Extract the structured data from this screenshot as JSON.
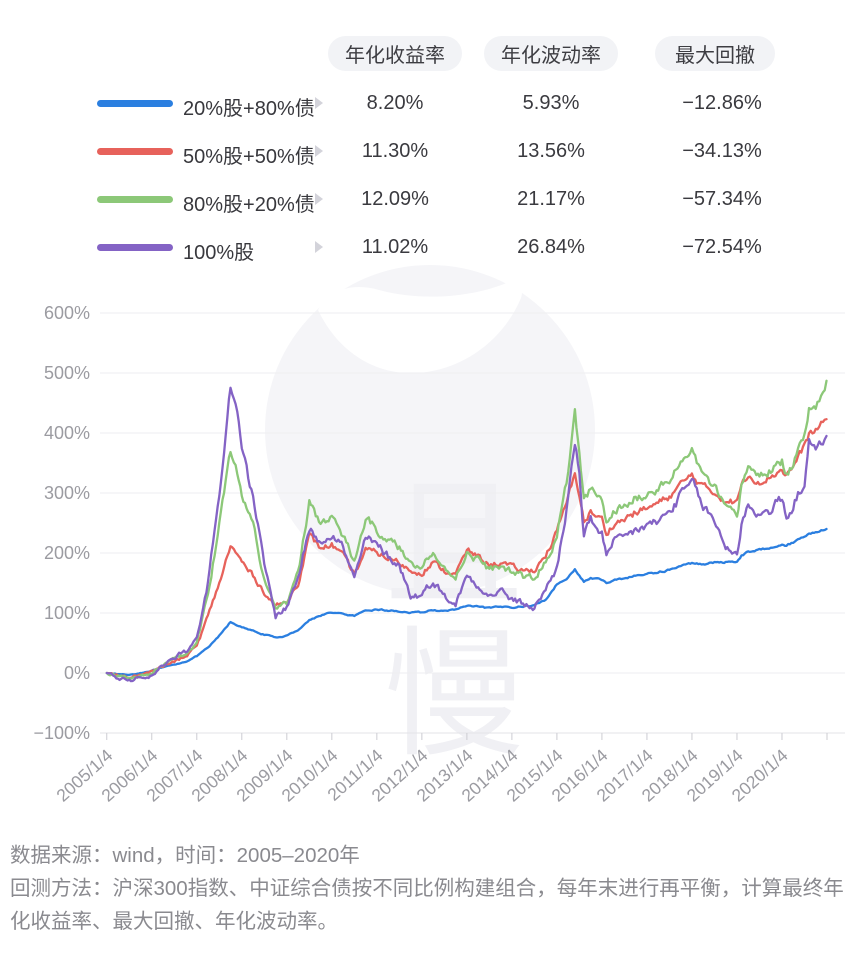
{
  "table": {
    "headers": [
      "年化收益率",
      "年化波动率",
      "最大回撤"
    ],
    "rows": [
      {
        "label": "20%股+80%债",
        "color": "#2b7fe0",
        "annual_return": "8.20%",
        "annual_volatility": "5.93%",
        "max_drawdown": "−12.86%"
      },
      {
        "label": "50%股+50%债",
        "color": "#e7625b",
        "annual_return": "11.30%",
        "annual_volatility": "13.56%",
        "max_drawdown": "−34.13%"
      },
      {
        "label": "80%股+20%债",
        "color": "#8cc878",
        "annual_return": "12.09%",
        "annual_volatility": "21.17%",
        "max_drawdown": "−57.34%"
      },
      {
        "label": "100%股",
        "color": "#8463c5",
        "annual_return": "11.02%",
        "annual_volatility": "26.84%",
        "max_drawdown": "−72.54%"
      }
    ]
  },
  "watermark": {
    "text": "且慢"
  },
  "footer": {
    "source_line": "数据来源：wind，时间：2005–2020年",
    "method_line": "回测方法：沪深300指数、中证综合债按不同比例构建组合，每年末进行再平衡，计算最终年化收益率、最大回撤、年化波动率。"
  },
  "chart_data": {
    "type": "line",
    "title": "",
    "xlabel": "",
    "ylabel": "",
    "grid": true,
    "legend_position": "table-top",
    "ylim": [
      -100,
      600
    ],
    "xlim": [
      2004.85,
      2021.4
    ],
    "y_tick_values": [
      600,
      500,
      400,
      300,
      200,
      100,
      0,
      -100
    ],
    "y_tick_labels": [
      "600%",
      "500%",
      "400%",
      "300%",
      "200%",
      "100%",
      "0%",
      "−100%"
    ],
    "x_tick_values": [
      2005,
      2006,
      2007,
      2008,
      2009,
      2010,
      2011,
      2012,
      2013,
      2014,
      2015,
      2016,
      2017,
      2018,
      2019,
      2020
    ],
    "x_tick_labels": [
      "2005/1/4",
      "2006/1/4",
      "2007/1/4",
      "2008/1/4",
      "2009/1/4",
      "2010/1/4",
      "2011/1/4",
      "2012/1/4",
      "2013/1/4",
      "2014/1/4",
      "2015/1/4",
      "2016/1/4",
      "2017/1/4",
      "2018/1/4",
      "2019/1/4",
      "2020/1/4"
    ],
    "x": [
      2005.0,
      2005.25,
      2005.5,
      2005.75,
      2006.0,
      2006.25,
      2006.5,
      2006.75,
      2007.0,
      2007.25,
      2007.5,
      2007.75,
      2007.9,
      2008.0,
      2008.25,
      2008.5,
      2008.75,
      2009.0,
      2009.25,
      2009.5,
      2009.75,
      2010.0,
      2010.25,
      2010.5,
      2010.75,
      2011.0,
      2011.25,
      2011.5,
      2011.75,
      2012.0,
      2012.25,
      2012.5,
      2012.75,
      2013.0,
      2013.25,
      2013.5,
      2013.75,
      2014.0,
      2014.25,
      2014.5,
      2014.75,
      2015.0,
      2015.25,
      2015.4,
      2015.5,
      2015.6,
      2015.75,
      2016.0,
      2016.1,
      2016.25,
      2016.5,
      2016.75,
      2017.0,
      2017.25,
      2017.5,
      2017.75,
      2018.0,
      2018.25,
      2018.5,
      2018.75,
      2019.0,
      2019.1,
      2019.25,
      2019.5,
      2019.75,
      2020.0,
      2020.1,
      2020.25,
      2020.5,
      2020.6,
      2020.75,
      2020.99
    ],
    "series": [
      {
        "name": "20%股+80%债",
        "color": "#2b7fe0",
        "jitter": 1.6,
        "values": [
          0,
          -2,
          -3,
          0,
          4,
          9,
          14,
          19,
          28,
          42,
          62,
          85,
          80,
          76,
          70,
          64,
          59,
          62,
          72,
          88,
          96,
          101,
          98,
          95,
          103,
          106,
          104,
          103,
          100,
          101,
          105,
          103,
          106,
          112,
          110,
          108,
          110,
          110,
          111,
          113,
          122,
          148,
          160,
          172,
          162,
          152,
          158,
          155,
          150,
          155,
          158,
          162,
          165,
          168,
          172,
          178,
          183,
          182,
          184,
          185,
          186,
          196,
          202,
          205,
          210,
          215,
          212,
          218,
          228,
          232,
          235,
          240
        ]
      },
      {
        "name": "50%股+50%债",
        "color": "#e7625b",
        "jitter": 5.0,
        "values": [
          0,
          -4,
          -7,
          -3,
          2,
          11,
          19,
          27,
          45,
          95,
          150,
          212,
          196,
          185,
          162,
          135,
          112,
          118,
          150,
          228,
          208,
          214,
          194,
          164,
          205,
          200,
          192,
          184,
          170,
          168,
          184,
          170,
          164,
          204,
          194,
          180,
          184,
          176,
          170,
          172,
          196,
          235,
          292,
          330,
          300,
          252,
          268,
          255,
          232,
          248,
          256,
          268,
          274,
          283,
          294,
          314,
          330,
          310,
          300,
          288,
          284,
          314,
          330,
          320,
          328,
          340,
          330,
          344,
          378,
          398,
          404,
          423
        ]
      },
      {
        "name": "80%股+20%债",
        "color": "#8cc878",
        "jitter": 6.2,
        "values": [
          0,
          -6,
          -10,
          -5,
          0,
          13,
          24,
          32,
          50,
          130,
          250,
          365,
          330,
          300,
          245,
          155,
          105,
          115,
          165,
          285,
          250,
          260,
          228,
          185,
          258,
          238,
          222,
          208,
          182,
          182,
          200,
          172,
          162,
          200,
          188,
          172,
          178,
          168,
          160,
          158,
          185,
          228,
          330,
          430,
          370,
          285,
          308,
          282,
          248,
          268,
          278,
          292,
          298,
          308,
          322,
          348,
          372,
          328,
          308,
          272,
          262,
          310,
          345,
          328,
          338,
          352,
          328,
          345,
          400,
          445,
          440,
          487
        ]
      },
      {
        "name": "100%股",
        "color": "#8463c5",
        "jitter": 7.2,
        "values": [
          0,
          -8,
          -13,
          -8,
          -3,
          15,
          28,
          35,
          55,
          150,
          300,
          480,
          440,
          370,
          290,
          180,
          95,
          110,
          160,
          240,
          220,
          235,
          210,
          155,
          225,
          212,
          195,
          180,
          128,
          130,
          155,
          128,
          115,
          162,
          148,
          128,
          138,
          122,
          115,
          108,
          140,
          175,
          290,
          385,
          330,
          225,
          255,
          235,
          192,
          215,
          225,
          238,
          245,
          252,
          268,
          295,
          318,
          278,
          252,
          212,
          198,
          245,
          285,
          262,
          272,
          292,
          252,
          280,
          320,
          385,
          368,
          395
        ]
      }
    ]
  }
}
